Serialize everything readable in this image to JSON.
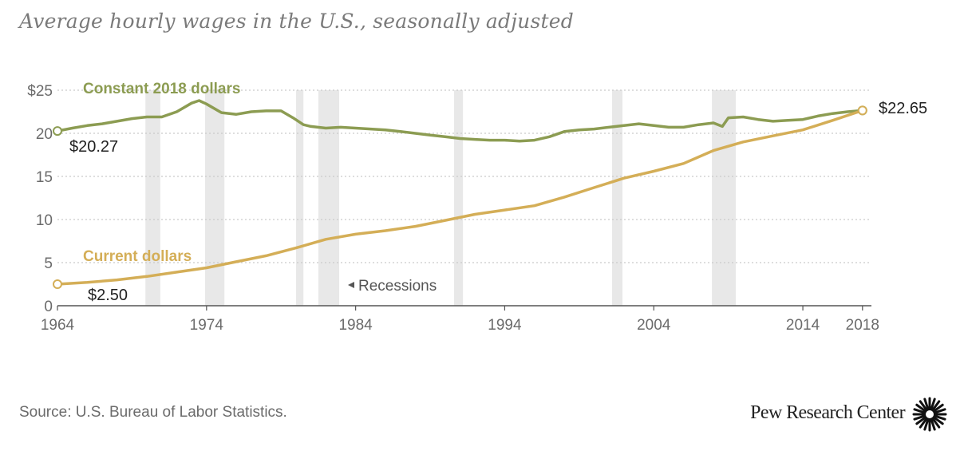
{
  "title": "Average hourly wages in the U.S., seasonally adjusted",
  "source": "Source: U.S. Bureau of Labor Statistics.",
  "brand": "Pew Research Center",
  "recessions_label": "Recessions",
  "recession_arrow_icon": "left-triangle-icon",
  "brand_icon": "sunburst-logo-icon",
  "colors": {
    "constant": "#8c9c52",
    "current": "#d4ae57",
    "recession": "#e8e8e8",
    "grid": "#c9c9c9",
    "axis_text": "#6b6b6b"
  },
  "chart_data": {
    "type": "line",
    "title": "Average hourly wages in the U.S., seasonally adjusted",
    "xlabel": "",
    "ylabel": "",
    "xlim": [
      1964,
      2018.6
    ],
    "ylim": [
      0,
      25
    ],
    "x_ticks": [
      {
        "value": 1964,
        "label": "1964"
      },
      {
        "value": 1974,
        "label": "1974"
      },
      {
        "value": 1984,
        "label": "1984"
      },
      {
        "value": 1994,
        "label": "1994"
      },
      {
        "value": 2004,
        "label": "2004"
      },
      {
        "value": 2014,
        "label": "2014"
      },
      {
        "value": 2018,
        "label": "2018"
      }
    ],
    "y_ticks": [
      {
        "value": 0,
        "label": "0"
      },
      {
        "value": 5,
        "label": "5"
      },
      {
        "value": 10,
        "label": "10"
      },
      {
        "value": 15,
        "label": "15"
      },
      {
        "value": 20,
        "label": "20"
      },
      {
        "value": 25,
        "label": "$25"
      }
    ],
    "grid": true,
    "recessions": [
      [
        1969.9,
        1970.9
      ],
      [
        1973.9,
        1975.2
      ],
      [
        1980.0,
        1980.5
      ],
      [
        1981.5,
        1982.9
      ],
      [
        1990.6,
        1991.2
      ],
      [
        2001.2,
        2001.9
      ],
      [
        2007.9,
        2009.5
      ]
    ],
    "series": [
      {
        "name": "Constant 2018 dollars",
        "start_label": "$20.27",
        "end_label": "$22.65",
        "points": [
          [
            1964,
            20.27
          ],
          [
            1965,
            20.6
          ],
          [
            1966,
            20.9
          ],
          [
            1967,
            21.1
          ],
          [
            1968,
            21.4
          ],
          [
            1969,
            21.7
          ],
          [
            1970,
            21.9
          ],
          [
            1971,
            21.9
          ],
          [
            1972,
            22.5
          ],
          [
            1973,
            23.5
          ],
          [
            1973.5,
            23.8
          ],
          [
            1974,
            23.4
          ],
          [
            1975,
            22.4
          ],
          [
            1976,
            22.2
          ],
          [
            1977,
            22.5
          ],
          [
            1978,
            22.6
          ],
          [
            1979,
            22.6
          ],
          [
            1979.8,
            21.8
          ],
          [
            1980.5,
            21.0
          ],
          [
            1981,
            20.8
          ],
          [
            1982,
            20.6
          ],
          [
            1983,
            20.7
          ],
          [
            1984,
            20.6
          ],
          [
            1985,
            20.5
          ],
          [
            1986,
            20.4
          ],
          [
            1987,
            20.2
          ],
          [
            1988,
            20.0
          ],
          [
            1989,
            19.8
          ],
          [
            1990,
            19.6
          ],
          [
            1991,
            19.4
          ],
          [
            1992,
            19.3
          ],
          [
            1993,
            19.2
          ],
          [
            1994,
            19.2
          ],
          [
            1995,
            19.1
          ],
          [
            1996,
            19.2
          ],
          [
            1997,
            19.6
          ],
          [
            1998,
            20.2
          ],
          [
            1999,
            20.4
          ],
          [
            2000,
            20.5
          ],
          [
            2001,
            20.7
          ],
          [
            2002,
            20.9
          ],
          [
            2003,
            21.1
          ],
          [
            2004,
            20.9
          ],
          [
            2005,
            20.7
          ],
          [
            2006,
            20.7
          ],
          [
            2007,
            21.0
          ],
          [
            2008,
            21.2
          ],
          [
            2008.6,
            20.8
          ],
          [
            2009,
            21.8
          ],
          [
            2010,
            21.9
          ],
          [
            2011,
            21.6
          ],
          [
            2012,
            21.4
          ],
          [
            2013,
            21.5
          ],
          [
            2014,
            21.6
          ],
          [
            2015,
            22.0
          ],
          [
            2016,
            22.3
          ],
          [
            2017,
            22.5
          ],
          [
            2018,
            22.65
          ]
        ]
      },
      {
        "name": "Current dollars",
        "start_label": "$2.50",
        "end_label": "",
        "points": [
          [
            1964,
            2.5
          ],
          [
            1966,
            2.7
          ],
          [
            1968,
            3.0
          ],
          [
            1970,
            3.4
          ],
          [
            1972,
            3.9
          ],
          [
            1974,
            4.4
          ],
          [
            1976,
            5.1
          ],
          [
            1978,
            5.8
          ],
          [
            1980,
            6.7
          ],
          [
            1982,
            7.7
          ],
          [
            1984,
            8.3
          ],
          [
            1986,
            8.7
          ],
          [
            1988,
            9.2
          ],
          [
            1990,
            9.9
          ],
          [
            1992,
            10.6
          ],
          [
            1994,
            11.1
          ],
          [
            1996,
            11.6
          ],
          [
            1998,
            12.6
          ],
          [
            2000,
            13.7
          ],
          [
            2002,
            14.8
          ],
          [
            2004,
            15.6
          ],
          [
            2006,
            16.5
          ],
          [
            2008,
            18.0
          ],
          [
            2010,
            19.0
          ],
          [
            2012,
            19.7
          ],
          [
            2014,
            20.4
          ],
          [
            2016,
            21.5
          ],
          [
            2018,
            22.65
          ]
        ]
      }
    ]
  }
}
